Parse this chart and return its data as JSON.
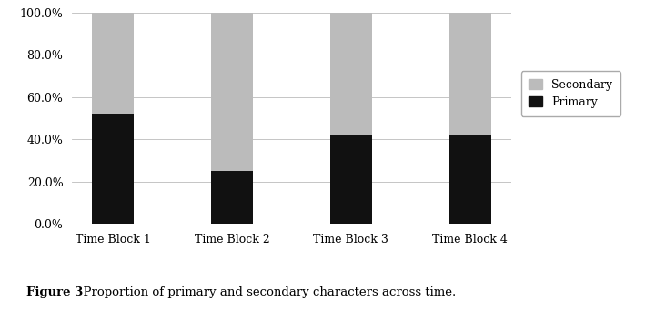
{
  "categories": [
    "Time Block 1",
    "Time Block 2",
    "Time Block 3",
    "Time Block 4"
  ],
  "primary": [
    0.52,
    0.25,
    0.42,
    0.42
  ],
  "secondary": [
    0.48,
    0.75,
    0.58,
    0.58
  ],
  "primary_color": "#111111",
  "secondary_color": "#bbbbbb",
  "background_color": "#ffffff",
  "ylabel_ticks": [
    "0.0%",
    "20.0%",
    "40.0%",
    "60.0%",
    "80.0%",
    "100.0%"
  ],
  "ytick_vals": [
    0.0,
    0.2,
    0.4,
    0.6,
    0.8,
    1.0
  ],
  "legend_labels": [
    "Secondary",
    "Primary"
  ],
  "caption_bold": "Figure 3",
  "caption_normal": "  Proportion of primary and secondary characters across time.",
  "bar_width": 0.35
}
